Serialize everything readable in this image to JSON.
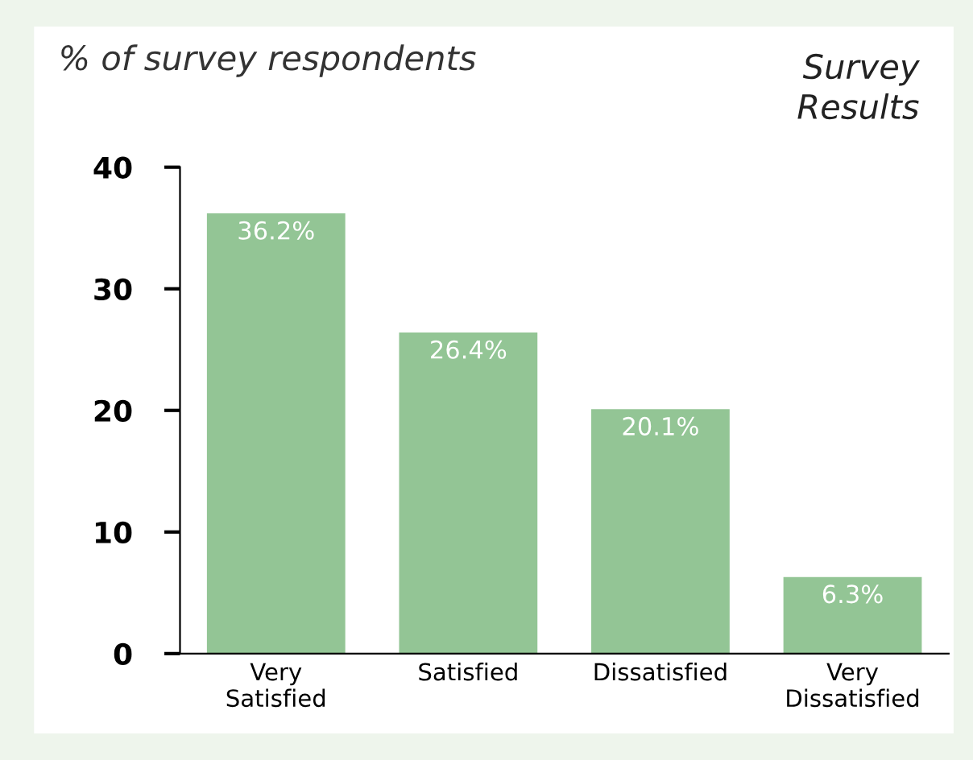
{
  "chart_data": {
    "type": "bar",
    "title": "Survey Results",
    "ylabel": "% of survey respondents",
    "categories": [
      "Very\nSatisfied",
      "Satisfied",
      "Dissatisfied",
      "Very\nDissatisfied"
    ],
    "values": [
      36.2,
      26.4,
      20.1,
      6.3
    ],
    "color": "#93c595",
    "value_labels": [
      "36.2%",
      "26.4%",
      "20.1%",
      "6.3%"
    ],
    "ylim": [
      0,
      40
    ],
    "yticks": [
      0,
      10,
      20,
      30,
      40
    ],
    "grid": false,
    "legend": false
  }
}
